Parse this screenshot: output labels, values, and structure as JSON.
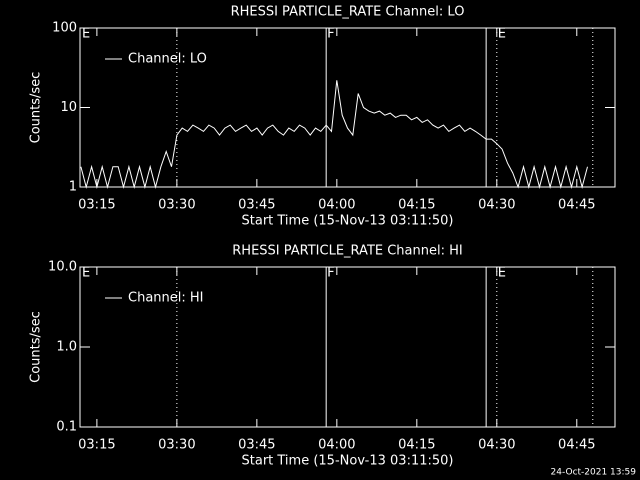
{
  "chart_data": [
    {
      "type": "line",
      "title": "RHESSI PARTICLE_RATE Channel: LO",
      "xlabel": "Start Time (15-Nov-13 03:11:50)",
      "ylabel": "Counts/sec",
      "log_y": true,
      "legend": "upper left",
      "xlim": [
        "03:11:50",
        "04:52:10"
      ],
      "ylim": [
        1,
        100
      ],
      "xticks": [
        "03:15",
        "03:30",
        "03:45",
        "04:00",
        "04:15",
        "04:30",
        "04:45"
      ],
      "yticks": [
        1,
        10,
        100
      ],
      "vlines": [
        {
          "x": "03:30",
          "style": "dotted"
        },
        {
          "x": "03:58",
          "style": "solid"
        },
        {
          "x": "04:28",
          "style": "solid"
        },
        {
          "x": "04:30",
          "style": "dotted"
        },
        {
          "x": "04:48",
          "style": "dotted"
        }
      ],
      "annotations": [
        {
          "text": "E",
          "x": "03:12"
        },
        {
          "text": "F",
          "x": "03:58"
        },
        {
          "text": "E",
          "x": "04:30"
        }
      ],
      "x": [
        "03:12",
        "03:13",
        "03:14",
        "03:15",
        "03:16",
        "03:17",
        "03:18",
        "03:19",
        "03:20",
        "03:21",
        "03:22",
        "03:23",
        "03:24",
        "03:25",
        "03:26",
        "03:27",
        "03:28",
        "03:29",
        "03:30",
        "03:31",
        "03:32",
        "03:33",
        "03:34",
        "03:35",
        "03:36",
        "03:37",
        "03:38",
        "03:39",
        "03:40",
        "03:41",
        "03:42",
        "03:43",
        "03:44",
        "03:45",
        "03:46",
        "03:47",
        "03:48",
        "03:49",
        "03:50",
        "03:51",
        "03:52",
        "03:53",
        "03:54",
        "03:55",
        "03:56",
        "03:57",
        "03:58",
        "03:59",
        "04:00",
        "04:01",
        "04:02",
        "04:03",
        "04:04",
        "04:05",
        "04:06",
        "04:07",
        "04:08",
        "04:09",
        "04:10",
        "04:11",
        "04:12",
        "04:13",
        "04:14",
        "04:15",
        "04:16",
        "04:17",
        "04:18",
        "04:19",
        "04:20",
        "04:21",
        "04:22",
        "04:23",
        "04:24",
        "04:25",
        "04:26",
        "04:27",
        "04:28",
        "04:29",
        "04:30",
        "04:31",
        "04:32",
        "04:33",
        "04:34",
        "04:35",
        "04:36",
        "04:37",
        "04:38",
        "04:39",
        "04:40",
        "04:41",
        "04:42",
        "04:43",
        "04:44",
        "04:45",
        "04:46",
        "04:47"
      ],
      "series": [
        {
          "name": "Channel: LO",
          "color": "#ffffff",
          "values": [
            1.8,
            1,
            1.8,
            1,
            1.8,
            1,
            1.8,
            1.8,
            1,
            1.8,
            1,
            1.8,
            1,
            1.8,
            1,
            1.8,
            2.8,
            1.8,
            4.5,
            5.5,
            5,
            6,
            5.5,
            5,
            6,
            5.5,
            4.5,
            5.5,
            6,
            5,
            5.5,
            6,
            5,
            5.5,
            4.5,
            5.5,
            6,
            5,
            4.5,
            5.5,
            5,
            6,
            5.5,
            4.5,
            5.5,
            5,
            6,
            5,
            22,
            8,
            5.5,
            4.5,
            15,
            10,
            9,
            8.5,
            9,
            8,
            8.5,
            7.5,
            8,
            8,
            7,
            7.5,
            6.5,
            7,
            6,
            5.5,
            6,
            5,
            5.5,
            6,
            5,
            5.5,
            5,
            4.5,
            4,
            4,
            3.5,
            3,
            2,
            1.5,
            1,
            1.8,
            1,
            1.8,
            1,
            1.8,
            1,
            1.8,
            1,
            1.8,
            1,
            1.8,
            1,
            1.8
          ]
        }
      ]
    },
    {
      "type": "line",
      "title": "RHESSI PARTICLE_RATE Channel: HI",
      "xlabel": "Start Time (15-Nov-13 03:11:50)",
      "ylabel": "Counts/sec",
      "log_y": true,
      "legend": "upper left",
      "xlim": [
        "03:11:50",
        "04:52:10"
      ],
      "ylim": [
        0.1,
        10
      ],
      "xticks": [
        "03:15",
        "03:30",
        "03:45",
        "04:00",
        "04:15",
        "04:30",
        "04:45"
      ],
      "yticks": [
        0.1,
        {
          "value": 1,
          "label": "1.0"
        },
        {
          "value": 10,
          "label": "10.0"
        }
      ],
      "vlines": [
        {
          "x": "03:30",
          "style": "dotted"
        },
        {
          "x": "03:58",
          "style": "solid"
        },
        {
          "x": "04:28",
          "style": "solid"
        },
        {
          "x": "04:30",
          "style": "dotted"
        },
        {
          "x": "04:48",
          "style": "dotted"
        }
      ],
      "annotations": [
        {
          "text": "E",
          "x": "03:12"
        },
        {
          "text": "F",
          "x": "03:58"
        },
        {
          "text": "E",
          "x": "04:30"
        }
      ],
      "x": [],
      "series": [
        {
          "name": "Channel: HI",
          "color": "#ffffff",
          "values": []
        }
      ]
    }
  ],
  "footer": "24-Oct-2021 13:59"
}
